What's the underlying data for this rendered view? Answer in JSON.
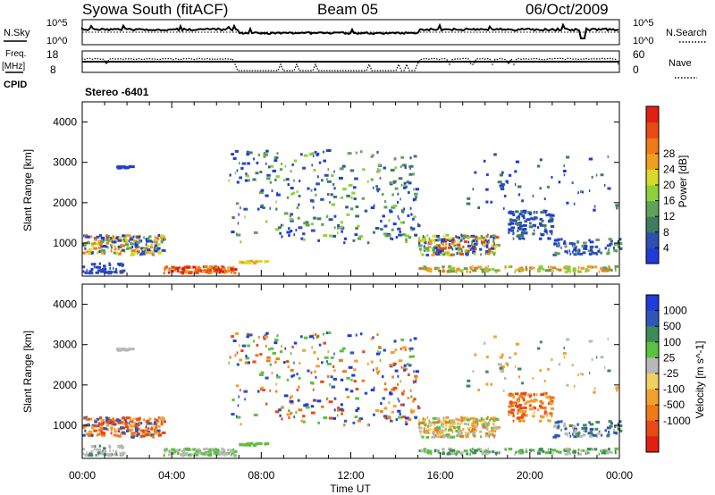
{
  "header": {
    "station": "Syowa South (fitACF)",
    "beam": "Beam 05",
    "date": "06/Oct/2009"
  },
  "sky_panel": {
    "left_label": "N.Sky",
    "right_label": "N.Search",
    "tick_top": "10^5",
    "tick_bottom": "10^0"
  },
  "freq_panel": {
    "left_label_1": "Freq.",
    "left_label_2": "[MHz]",
    "left_label_3": "CPID",
    "right_label": "Nave",
    "left_ticks": [
      "18",
      "8"
    ],
    "right_ticks": [
      "60",
      "0"
    ]
  },
  "cpid_text": "Stereo -6401",
  "colors": {
    "axis": "#000000"
  },
  "chart_data": [
    {
      "type": "heatmap",
      "title": "",
      "xlabel": "Time UT",
      "ylabel": "Slant Range [km]",
      "x_ticks": [
        "00:00",
        "04:00",
        "08:00",
        "12:00",
        "16:00",
        "20:00",
        "00:00"
      ],
      "y_ticks": [
        "1000",
        "2000",
        "3000",
        "4000"
      ],
      "colorbar": {
        "label": "Power [dB]",
        "ticks": [
          "4",
          "8",
          "12",
          "16",
          "20",
          "24",
          "28"
        ],
        "colors": [
          "#1f3bd8",
          "#2e4fb0",
          "#3e7d63",
          "#5fa35a",
          "#8ed13a",
          "#d9d92a",
          "#f0a020",
          "#ee7a18",
          "#e84a14",
          "#e02010"
        ]
      }
    },
    {
      "type": "heatmap",
      "title": "",
      "xlabel": "Time UT",
      "ylabel": "Slant Range [km]",
      "x_ticks": [
        "00:00",
        "04:00",
        "08:00",
        "12:00",
        "16:00",
        "20:00",
        "00:00"
      ],
      "y_ticks": [
        "1000",
        "2000",
        "3000",
        "4000"
      ],
      "colorbar": {
        "label": "Velocity [m s^-1]",
        "ticks": [
          "1000",
          "500",
          "100",
          "25",
          "-25",
          "-100",
          "-500",
          "-1000"
        ],
        "colors": [
          "#1f3bd8",
          "#2e57b8",
          "#3e8a5a",
          "#5cc040",
          "#b9b9b9",
          "#f0d060",
          "#f2a030",
          "#ee7a18",
          "#e84a14",
          "#e02010"
        ]
      }
    }
  ]
}
